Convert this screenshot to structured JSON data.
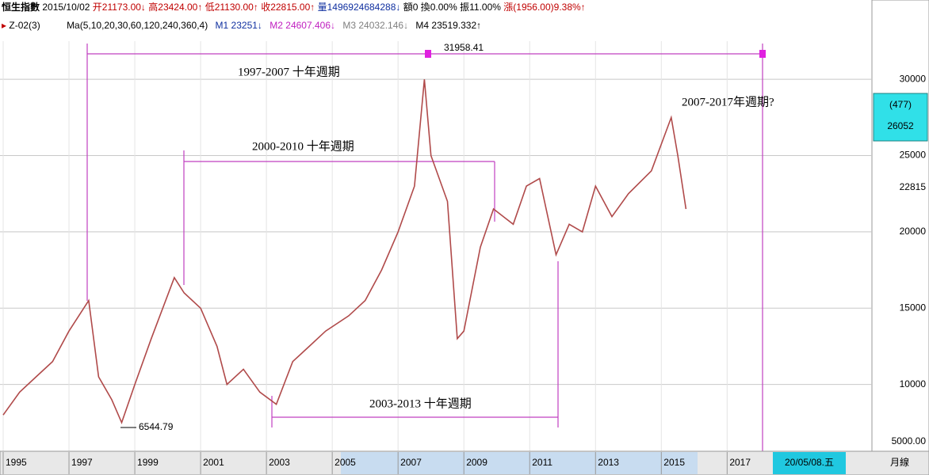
{
  "header": {
    "line1": [
      "恒生指數",
      "2015/10/02",
      "开21173.00↓",
      "高23424.00↑",
      "低21130.00↑",
      "收22815.00↑",
      "量1496924684288↓",
      "額0",
      "換0.00%",
      "振11.00%",
      "漲(1956.00)9.38%↑"
    ],
    "line2": [
      "Z-02(3)",
      "Ma(5,10,20,30,60,120,240,360,4)",
      "M1 23251↓",
      "M2 24607.406↓",
      "M3 24032.146↓",
      "M4 23519.332↑"
    ]
  },
  "sidebar": {
    "box_top": "(477)",
    "box_bottom": "26052",
    "last": "22815"
  },
  "footer": {
    "date": "20/05/08.五",
    "period": "月線"
  },
  "chart_data": {
    "type": "line",
    "x": [
      1995.0,
      1995.5,
      1996.0,
      1996.5,
      1997.0,
      1997.6,
      1997.9,
      1998.3,
      1998.6,
      1999.0,
      1999.5,
      2000.2,
      2000.5,
      2001.0,
      2001.5,
      2001.8,
      2002.3,
      2002.8,
      2003.3,
      2003.8,
      2004.3,
      2004.8,
      2005.5,
      2006.0,
      2006.5,
      2007.0,
      2007.5,
      2007.8,
      2008.0,
      2008.5,
      2008.8,
      2009.0,
      2009.5,
      2009.9,
      2010.5,
      2010.9,
      2011.3,
      2011.8,
      2012.2,
      2012.6,
      2013.0,
      2013.5,
      2014.0,
      2014.7,
      2015.3,
      2015.5,
      2015.75
    ],
    "values": [
      8000,
      9500,
      10500,
      11500,
      13500,
      15500,
      10500,
      9000,
      7500,
      10000,
      13000,
      17000,
      16000,
      15000,
      12500,
      10000,
      11000,
      9500,
      8700,
      11500,
      12500,
      13500,
      14500,
      15500,
      17500,
      20000,
      23000,
      30000,
      25000,
      22000,
      13000,
      13500,
      19000,
      21500,
      20500,
      23000,
      23500,
      18500,
      20500,
      20000,
      23000,
      21000,
      22500,
      24000,
      27500,
      25000,
      21500
    ],
    "color": "#b04a4a",
    "xlim": [
      1995,
      2021.4
    ],
    "xticks": [
      1995,
      1997,
      1999,
      2001,
      2003,
      2005,
      2007,
      2009,
      2011,
      2013,
      2015,
      2017
    ],
    "ylim": [
      5000,
      32500
    ],
    "yticks": [
      {
        "value": 5000,
        "label": "5000.00"
      },
      10000,
      15000,
      20000,
      25000,
      30000
    ],
    "grid": true,
    "annotations": [
      "31958.41",
      "6544.79",
      "1997-2007 十年週期",
      "2000-2010 十年週期",
      "2003-2013 十年週期",
      "2007-2017年週期?"
    ]
  }
}
